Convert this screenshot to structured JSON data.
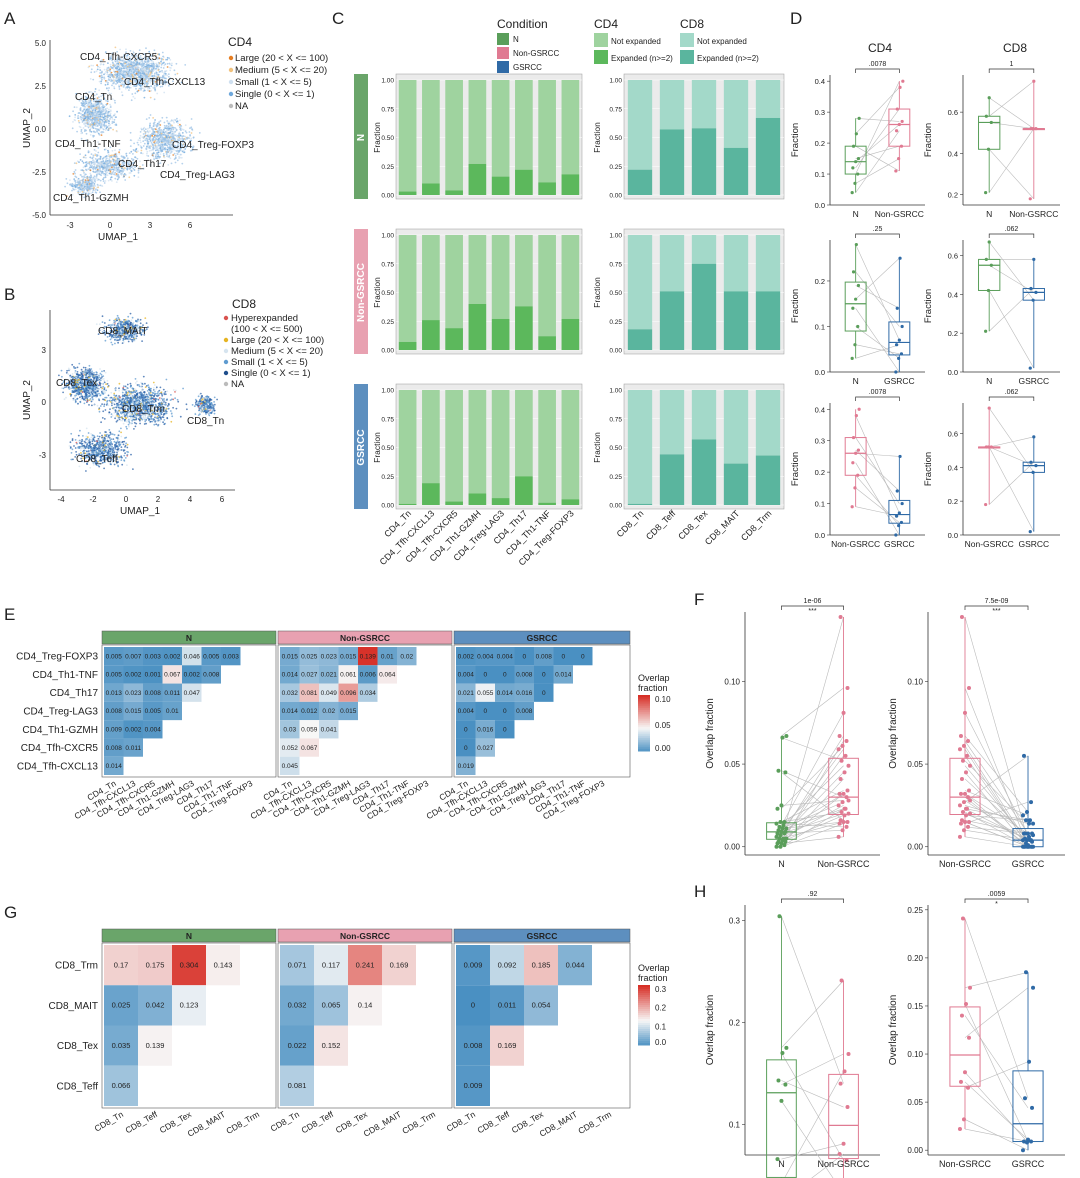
{
  "colors": {
    "N": "#5a9e5a",
    "NonGSRCC": "#e07a92",
    "GSRCC": "#2f6aa6",
    "stripN": "#6aa56a",
    "stripNon": "#e8a1b1",
    "stripG": "#5d8fbf",
    "cd4_not": "#9fd39f",
    "cd4_exp": "#5cb85c",
    "cd8_not": "#a3d9c9",
    "cd8_exp": "#5ab59e",
    "hm_high": "#d73027",
    "hm_mid": "#f7f7f7",
    "hm_low": "#4a90c2",
    "umap_cd4": "#9ec3e6",
    "umap_cd8": "#2b62a8"
  },
  "panels": {
    "A": {
      "letter": "A",
      "xlabel": "UMAP_1",
      "ylabel": "UMAP_2",
      "xticks": [
        "-3",
        "0",
        "3",
        "6"
      ],
      "yticks": [
        "5.0",
        "2.5",
        "0.0",
        "-2.5",
        "-5.0"
      ],
      "cluster_labels": [
        "CD4_Tfh-CXCR5",
        "CD4_Tfh-CXCL13",
        "CD4_Tn",
        "CD4_Th1-TNF",
        "CD4_Treg-FOXP3",
        "CD4_Th17",
        "CD4_Treg-LAG3",
        "CD4_Th1-GZMH"
      ],
      "legend_title": "CD4",
      "legend": [
        {
          "label": "Large (20 < X <= 100)",
          "color": "#e67e22"
        },
        {
          "label": "Medium (5 < X <= 20)",
          "color": "#f1c27d"
        },
        {
          "label": "Small (1 < X <= 5)",
          "color": "#cfe0f0"
        },
        {
          "label": "Single (0 < X <= 1)",
          "color": "#6fa8dc"
        },
        {
          "label": "NA",
          "color": "#bbbbbb"
        }
      ]
    },
    "B": {
      "letter": "B",
      "xlabel": "UMAP_1",
      "ylabel": "UMAP_2",
      "xticks": [
        "-4",
        "-2",
        "0",
        "2",
        "4",
        "6"
      ],
      "yticks": [
        "3",
        "0",
        "-3"
      ],
      "cluster_labels": [
        "CD8_MAIT",
        "CD8_Tex",
        "CD8_Trm",
        "CD8_Tn",
        "CD8_Teff"
      ],
      "legend_title": "CD8",
      "legend": [
        {
          "label": "Hyperexpanded",
          "label2": "(100 < X <= 500)",
          "color": "#d9534f"
        },
        {
          "label": "Large (20 < X <= 100)",
          "color": "#e6b422"
        },
        {
          "label": "Medium (5 < X <= 20)",
          "color": "#d6e4ef"
        },
        {
          "label": "Small (1 < X <= 5)",
          "color": "#5f9bd0"
        },
        {
          "label": "Single (0 < X <= 1)",
          "color": "#1f4e8c"
        },
        {
          "label": "NA",
          "color": "#bbbbbb"
        }
      ]
    },
    "C": {
      "letter": "C",
      "ylabel": "Fraction",
      "yticks": [
        "0.00",
        "0.25",
        "0.50",
        "0.75",
        "1.00"
      ],
      "legend": {
        "condition_title": "Condition",
        "conditions": [
          "N",
          "Non-GSRCC",
          "GSRCC"
        ],
        "cd4_title": "CD4",
        "cd8_title": "CD8",
        "not_expanded": "Not expanded",
        "expanded": "Expanded (n>=2)"
      }
    },
    "D": {
      "letter": "D",
      "ylabel": "Fraction",
      "cd4_title": "CD4",
      "cd8_title": "CD8"
    },
    "E": {
      "letter": "E",
      "legend_title": "Overlap",
      "legend_title2": "fraction",
      "legend_ticks": [
        "0.10",
        "0.05",
        "0.00"
      ]
    },
    "F": {
      "letter": "F",
      "ylabel": "Overlap fraction"
    },
    "G": {
      "letter": "G",
      "legend_title": "Overlap",
      "legend_title2": "fraction",
      "legend_ticks": [
        "0.3",
        "0.2",
        "0.1",
        "0.0"
      ]
    },
    "H": {
      "letter": "H",
      "ylabel": "Overlap fraction"
    }
  },
  "chart_data": [
    {
      "id": "C-CD4",
      "type": "bar",
      "stacked": true,
      "title": "CD4",
      "categories": [
        "CD4_Tn",
        "CD4_Tfh-CXCL13",
        "CD4_Tfh-CXCR5",
        "CD4_Th1-GZMH",
        "CD4_Treg-LAG3",
        "CD4_Th17",
        "CD4_Th1-TNF",
        "CD4_Treg-FOXP3"
      ],
      "ylim": [
        0,
        1
      ],
      "ylabel": "Fraction",
      "facets": [
        {
          "name": "N",
          "expanded": [
            0.03,
            0.1,
            0.04,
            0.27,
            0.16,
            0.22,
            0.11,
            0.18
          ]
        },
        {
          "name": "Non-GSRCC",
          "expanded": [
            0.07,
            0.26,
            0.19,
            0.4,
            0.27,
            0.38,
            0.12,
            0.27
          ]
        },
        {
          "name": "GSRCC",
          "expanded": [
            0.01,
            0.19,
            0.03,
            0.1,
            0.06,
            0.25,
            0.02,
            0.05
          ]
        }
      ]
    },
    {
      "id": "C-CD8",
      "type": "bar",
      "stacked": true,
      "title": "CD8",
      "categories": [
        "CD8_Tn",
        "CD8_Teff",
        "CD8_Tex",
        "CD8_MAIT",
        "CD8_Trm"
      ],
      "ylim": [
        0,
        1
      ],
      "ylabel": "Fraction",
      "facets": [
        {
          "name": "N",
          "expanded": [
            0.22,
            0.57,
            0.58,
            0.41,
            0.67
          ]
        },
        {
          "name": "Non-GSRCC",
          "expanded": [
            0.18,
            0.51,
            0.75,
            0.51,
            0.51
          ]
        },
        {
          "name": "GSRCC",
          "expanded": [
            0.01,
            0.44,
            0.57,
            0.36,
            0.43
          ]
        }
      ]
    },
    {
      "id": "D1",
      "type": "box",
      "title": "CD4",
      "groups": [
        "N",
        "Non-GSRCC"
      ],
      "p": ".0078",
      "ylim": [
        0,
        0.42
      ],
      "yticks": [
        0.0,
        0.1,
        0.2,
        0.3,
        0.4
      ],
      "values": [
        [
          0.04,
          0.07,
          0.1,
          0.12,
          0.14,
          0.15,
          0.19,
          0.23,
          0.28
        ],
        [
          0.11,
          0.15,
          0.19,
          0.24,
          0.26,
          0.27,
          0.31,
          0.38,
          0.4
        ]
      ]
    },
    {
      "id": "D2",
      "type": "box",
      "title": "CD8",
      "groups": [
        "N",
        "Non-GSRCC"
      ],
      "p": "1",
      "ylim": [
        0.15,
        0.78
      ],
      "yticks": [
        0.2,
        0.4,
        0.6
      ],
      "values": [
        [
          0.21,
          0.42,
          0.55,
          0.58,
          0.67
        ],
        [
          0.18,
          0.52,
          0.52,
          0.52,
          0.75
        ]
      ]
    },
    {
      "id": "D3",
      "type": "box",
      "groups": [
        "N",
        "GSRCC"
      ],
      "p": ".25",
      "ylim": [
        0,
        0.29
      ],
      "yticks": [
        0.0,
        0.1,
        0.2
      ],
      "values": [
        [
          0.03,
          0.06,
          0.1,
          0.14,
          0.16,
          0.19,
          0.22,
          0.28
        ],
        [
          0.0,
          0.03,
          0.04,
          0.06,
          0.07,
          0.1,
          0.14,
          0.25
        ]
      ]
    },
    {
      "id": "D4",
      "type": "box",
      "groups": [
        "N",
        "GSRCC"
      ],
      "p": ".062",
      "ylim": [
        0,
        0.68
      ],
      "yticks": [
        0.0,
        0.2,
        0.4,
        0.6
      ],
      "values": [
        [
          0.21,
          0.42,
          0.55,
          0.58,
          0.67
        ],
        [
          0.02,
          0.37,
          0.41,
          0.43,
          0.58
        ]
      ]
    },
    {
      "id": "D5",
      "type": "box",
      "groups": [
        "Non-GSRCC",
        "GSRCC"
      ],
      "p": ".0078",
      "ylim": [
        0,
        0.42
      ],
      "yticks": [
        0.0,
        0.1,
        0.2,
        0.3,
        0.4
      ],
      "values": [
        [
          0.09,
          0.15,
          0.19,
          0.23,
          0.26,
          0.27,
          0.31,
          0.38,
          0.4
        ],
        [
          0.0,
          0.03,
          0.04,
          0.06,
          0.07,
          0.1,
          0.14,
          0.25
        ]
      ]
    },
    {
      "id": "D6",
      "type": "box",
      "groups": [
        "Non-GSRCC",
        "GSRCC"
      ],
      "p": ".062",
      "ylim": [
        0,
        0.78
      ],
      "yticks": [
        0.0,
        0.2,
        0.4,
        0.6
      ],
      "values": [
        [
          0.18,
          0.52,
          0.52,
          0.52,
          0.75
        ],
        [
          0.02,
          0.37,
          0.41,
          0.43,
          0.58
        ]
      ]
    },
    {
      "id": "E",
      "type": "heatmap",
      "title": "Overlap fraction CD4",
      "rows": [
        "CD4_Treg-FOXP3",
        "CD4_Th1-TNF",
        "CD4_Th17",
        "CD4_Treg-LAG3",
        "CD4_Th1-GZMH",
        "CD4_Tfh-CXCR5",
        "CD4_Tfh-CXCL13"
      ],
      "cols": [
        "CD4_Tn",
        "CD4_Tfh-CXCL13",
        "CD4_Tfh-CXCR5",
        "CD4_Th1-GZMH",
        "CD4_Treg-LAG3",
        "CD4_Th17",
        "CD4_Th1-TNF",
        "CD4_Treg-FOXP3"
      ],
      "range": [
        0,
        0.14
      ],
      "facets": [
        {
          "name": "N",
          "values": [
            [
              "0.005",
              "0.007",
              "0.003",
              "0.002",
              "0.046",
              "0.005",
              "0.003"
            ],
            [
              "0.005",
              "0.002",
              "0.001",
              "0.067",
              "0.002",
              "0.008"
            ],
            [
              "0.013",
              "0.023",
              "0.008",
              "0.011",
              "0.047"
            ],
            [
              "0.008",
              "0.015",
              "0.005",
              "0.01"
            ],
            [
              "0.009",
              "0.002",
              "0.004"
            ],
            [
              "0.008",
              "0.011"
            ],
            [
              "0.014"
            ]
          ]
        },
        {
          "name": "Non-GSRCC",
          "values": [
            [
              "0.015",
              "0.025",
              "0.023",
              "0.015",
              "0.139",
              "0.01",
              "0.02"
            ],
            [
              "0.014",
              "0.027",
              "0.021",
              "0.061",
              "0.006",
              "0.064"
            ],
            [
              "0.032",
              "0.081",
              "0.049",
              "0.096",
              "0.034"
            ],
            [
              "0.014",
              "0.012",
              "0.02",
              "0.015"
            ],
            [
              "0.03",
              "0.059",
              "0.041"
            ],
            [
              "0.052",
              "0.067"
            ],
            [
              "0.045"
            ]
          ]
        },
        {
          "name": "GSRCC",
          "values": [
            [
              "0.002",
              "0.004",
              "0.004",
              "0",
              "0.008",
              "0",
              "0"
            ],
            [
              "0.004",
              "0",
              "0",
              "0.008",
              "0",
              "0.014"
            ],
            [
              "0.021",
              "0.055",
              "0.014",
              "0.016",
              "0"
            ],
            [
              "0.004",
              "0",
              "0",
              "0.008"
            ],
            [
              "0",
              "0.016",
              "0"
            ],
            [
              "0",
              "0.027"
            ],
            [
              "0.019"
            ]
          ]
        }
      ]
    },
    {
      "id": "G",
      "type": "heatmap",
      "title": "Overlap fraction CD8",
      "rows": [
        "CD8_Trm",
        "CD8_MAIT",
        "CD8_Tex",
        "CD8_Teff"
      ],
      "cols": [
        "CD8_Tn",
        "CD8_Teff",
        "CD8_Tex",
        "CD8_MAIT",
        "CD8_Trm"
      ],
      "range": [
        0,
        0.32
      ],
      "facets": [
        {
          "name": "N",
          "values": [
            [
              "0.17",
              "0.175",
              "0.304",
              "0.143"
            ],
            [
              "0.025",
              "0.042",
              "0.123"
            ],
            [
              "0.035",
              "0.139"
            ],
            [
              "0.066"
            ]
          ]
        },
        {
          "name": "Non-GSRCC",
          "values": [
            [
              "0.071",
              "0.117",
              "0.241",
              "0.169"
            ],
            [
              "0.032",
              "0.065",
              "0.14"
            ],
            [
              "0.022",
              "0.152"
            ],
            [
              "0.081"
            ]
          ]
        },
        {
          "name": "GSRCC",
          "values": [
            [
              "0.009",
              "0.092",
              "0.185",
              "0.044"
            ],
            [
              "0",
              "0.011",
              "0.054"
            ],
            [
              "0.008",
              "0.169"
            ],
            [
              "0.009"
            ]
          ]
        }
      ]
    },
    {
      "id": "F1",
      "type": "box",
      "groups": [
        "N",
        "Non-GSRCC"
      ],
      "p": "1e-06",
      "stars": "***",
      "ylim": [
        -0.005,
        0.142
      ],
      "yticks": [
        "0.00",
        "0.05",
        "0.10"
      ],
      "values": [
        [
          0.0,
          0.0,
          0.001,
          0.002,
          0.002,
          0.003,
          0.003,
          0.004,
          0.005,
          0.005,
          0.005,
          0.006,
          0.007,
          0.008,
          0.008,
          0.009,
          0.009,
          0.01,
          0.011,
          0.011,
          0.012,
          0.013,
          0.014,
          0.015,
          0.015,
          0.023,
          0.025,
          0.045,
          0.046,
          0.066,
          0.067
        ],
        [
          0.006,
          0.01,
          0.012,
          0.014,
          0.015,
          0.015,
          0.016,
          0.019,
          0.02,
          0.021,
          0.023,
          0.025,
          0.027,
          0.03,
          0.032,
          0.032,
          0.034,
          0.041,
          0.045,
          0.049,
          0.052,
          0.055,
          0.059,
          0.061,
          0.064,
          0.067,
          0.081,
          0.096,
          0.139,
          0.023,
          0.028
        ]
      ]
    },
    {
      "id": "F2",
      "type": "box",
      "groups": [
        "Non-GSRCC",
        "GSRCC"
      ],
      "p": "7.5e-09",
      "stars": "***",
      "ylim": [
        -0.005,
        0.142
      ],
      "yticks": [
        "0.00",
        "0.05",
        "0.10"
      ],
      "values": [
        [
          0.006,
          0.01,
          0.012,
          0.014,
          0.015,
          0.015,
          0.016,
          0.019,
          0.02,
          0.021,
          0.023,
          0.025,
          0.027,
          0.03,
          0.032,
          0.032,
          0.034,
          0.041,
          0.045,
          0.049,
          0.052,
          0.055,
          0.059,
          0.061,
          0.064,
          0.067,
          0.081,
          0.096,
          0.139,
          0.023,
          0.028
        ],
        [
          0.0,
          0.0,
          0.0,
          0.0,
          0.0,
          0.0,
          0.0,
          0.0,
          0.0,
          0.002,
          0.004,
          0.004,
          0.004,
          0.004,
          0.008,
          0.008,
          0.008,
          0.008,
          0.014,
          0.014,
          0.016,
          0.016,
          0.019,
          0.021,
          0.027,
          0.055,
          0.001,
          0.003,
          0.005,
          0.006,
          0.007
        ]
      ]
    },
    {
      "id": "H1",
      "type": "box",
      "groups": [
        "N",
        "Non-GSRCC"
      ],
      "p": ".92",
      "ylim": [
        0.07,
        0.315
      ],
      "yticks": [
        "0.1",
        "0.2",
        "0.3"
      ],
      "values": [
        [
          0.025,
          0.035,
          0.042,
          0.066,
          0.123,
          0.139,
          0.143,
          0.17,
          0.175,
          0.304
        ],
        [
          0.022,
          0.032,
          0.065,
          0.071,
          0.081,
          0.117,
          0.14,
          0.152,
          0.169,
          0.241
        ]
      ]
    },
    {
      "id": "H2",
      "type": "box",
      "groups": [
        "Non-GSRCC",
        "GSRCC"
      ],
      "p": ".0059",
      "stars": "*",
      "ylim": [
        -0.005,
        0.255
      ],
      "yticks": [
        "0.00",
        "0.05",
        "0.10",
        "0.15",
        "0.20",
        "0.25"
      ],
      "values": [
        [
          0.022,
          0.032,
          0.065,
          0.071,
          0.081,
          0.117,
          0.14,
          0.152,
          0.169,
          0.241
        ],
        [
          0.0,
          0.008,
          0.009,
          0.009,
          0.011,
          0.044,
          0.054,
          0.092,
          0.169,
          0.185
        ]
      ]
    }
  ]
}
